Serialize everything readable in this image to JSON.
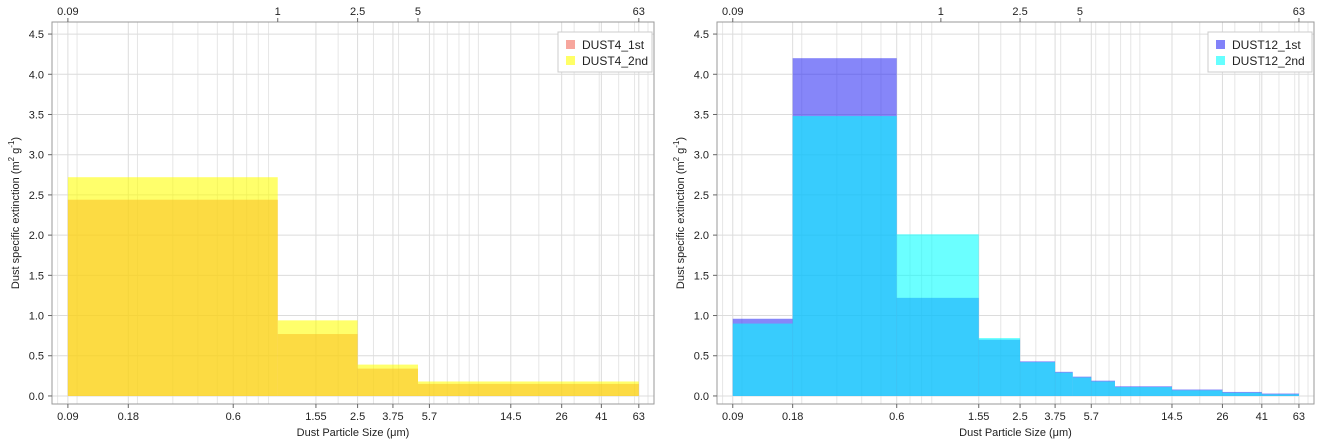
{
  "chart_data": [
    {
      "type": "bar",
      "xscale": "log",
      "xlim": [
        0.075,
        75
      ],
      "ylim": [
        -0.1,
        4.65
      ],
      "yticks": [
        0.0,
        0.5,
        1.0,
        1.5,
        2.0,
        2.5,
        3.0,
        3.5,
        4.0,
        4.5
      ],
      "ytick_labels": [
        "0.0",
        "0.5",
        "1.0",
        "1.5",
        "2.0",
        "2.5",
        "3.0",
        "3.5",
        "4.0",
        "4.5"
      ],
      "bottom_ticks": [
        0.09,
        0.18,
        0.6,
        1.55,
        2.5,
        3.75,
        5.7,
        14.5,
        26,
        41,
        63
      ],
      "bottom_tick_labels": [
        "0.09",
        "0.18",
        "0.6",
        "1.55",
        "2.5",
        "3.75",
        "5.7",
        "14.5",
        "26",
        "41",
        "63"
      ],
      "top_ticks": [
        0.09,
        1,
        2.5,
        5,
        63
      ],
      "top_tick_labels": [
        "0.09",
        "1",
        "2.5",
        "5",
        "63"
      ],
      "xlabel": "Dust Particle Size (μm)",
      "ylabel_main": "Dust specific extinction (m",
      "ylabel_sup1": "2",
      "ylabel_mid": " g",
      "ylabel_sup2": "-1",
      "ylabel_end": ")",
      "grid": true,
      "legend_position": "top-right",
      "series": [
        {
          "name": "DUST4_1st",
          "color": "#f26b5b",
          "bins": [
            [
              0.09,
              1
            ],
            [
              1,
              2.5
            ],
            [
              2.5,
              5
            ],
            [
              5,
              63
            ]
          ],
          "values": [
            2.44,
            0.77,
            0.34,
            0.15
          ]
        },
        {
          "name": "DUST4_2nd",
          "color": "#ffff00",
          "bins": [
            [
              0.09,
              1
            ],
            [
              1,
              2.5
            ],
            [
              2.5,
              5
            ],
            [
              5,
              63
            ]
          ],
          "values": [
            2.72,
            0.94,
            0.39,
            0.18
          ]
        }
      ]
    },
    {
      "type": "bar",
      "xscale": "log",
      "xlim": [
        0.075,
        75
      ],
      "ylim": [
        -0.1,
        4.65
      ],
      "yticks": [
        0.0,
        0.5,
        1.0,
        1.5,
        2.0,
        2.5,
        3.0,
        3.5,
        4.0,
        4.5
      ],
      "ytick_labels": [
        "0.0",
        "0.5",
        "1.0",
        "1.5",
        "2.0",
        "2.5",
        "3.0",
        "3.5",
        "4.0",
        "4.5"
      ],
      "bottom_ticks": [
        0.09,
        0.18,
        0.6,
        1.55,
        2.5,
        3.75,
        5.7,
        14.5,
        26,
        41,
        63
      ],
      "bottom_tick_labels": [
        "0.09",
        "0.18",
        "0.6",
        "1.55",
        "2.5",
        "3.75",
        "5.7",
        "14.5",
        "26",
        "41",
        "63"
      ],
      "top_ticks": [
        0.09,
        1,
        2.5,
        5,
        63
      ],
      "top_tick_labels": [
        "0.09",
        "1",
        "2.5",
        "5",
        "63"
      ],
      "xlabel": "Dust Particle Size (μm)",
      "ylabel_main": "Dust specific extinction (m",
      "ylabel_sup1": "2",
      "ylabel_mid": " g",
      "ylabel_sup2": "-1",
      "ylabel_end": ")",
      "grid": true,
      "legend_position": "top-right",
      "series": [
        {
          "name": "DUST12_1st",
          "color": "#2e2ef5",
          "bins": [
            [
              0.09,
              0.18
            ],
            [
              0.18,
              0.6
            ],
            [
              0.6,
              1.55
            ],
            [
              1.55,
              2.5
            ],
            [
              2.5,
              3.75
            ],
            [
              3.75,
              4.6
            ],
            [
              4.6,
              5.7
            ],
            [
              5.7,
              7.5
            ],
            [
              7.5,
              14.5
            ],
            [
              14.5,
              26
            ],
            [
              26,
              41
            ],
            [
              41,
              63
            ]
          ],
          "values": [
            0.96,
            4.2,
            1.22,
            0.7,
            0.43,
            0.3,
            0.24,
            0.19,
            0.12,
            0.08,
            0.05,
            0.03
          ]
        },
        {
          "name": "DUST12_2nd",
          "color": "#00ffff",
          "bins": [
            [
              0.09,
              0.18
            ],
            [
              0.18,
              0.6
            ],
            [
              0.6,
              1.55
            ],
            [
              1.55,
              2.5
            ],
            [
              2.5,
              3.75
            ],
            [
              3.75,
              4.6
            ],
            [
              4.6,
              5.7
            ],
            [
              5.7,
              7.5
            ],
            [
              7.5,
              14.5
            ],
            [
              14.5,
              26
            ],
            [
              26,
              41
            ],
            [
              41,
              63
            ]
          ],
          "values": [
            0.9,
            3.48,
            2.01,
            0.72,
            0.42,
            0.29,
            0.23,
            0.18,
            0.11,
            0.07,
            0.04,
            0.02
          ]
        }
      ]
    }
  ]
}
